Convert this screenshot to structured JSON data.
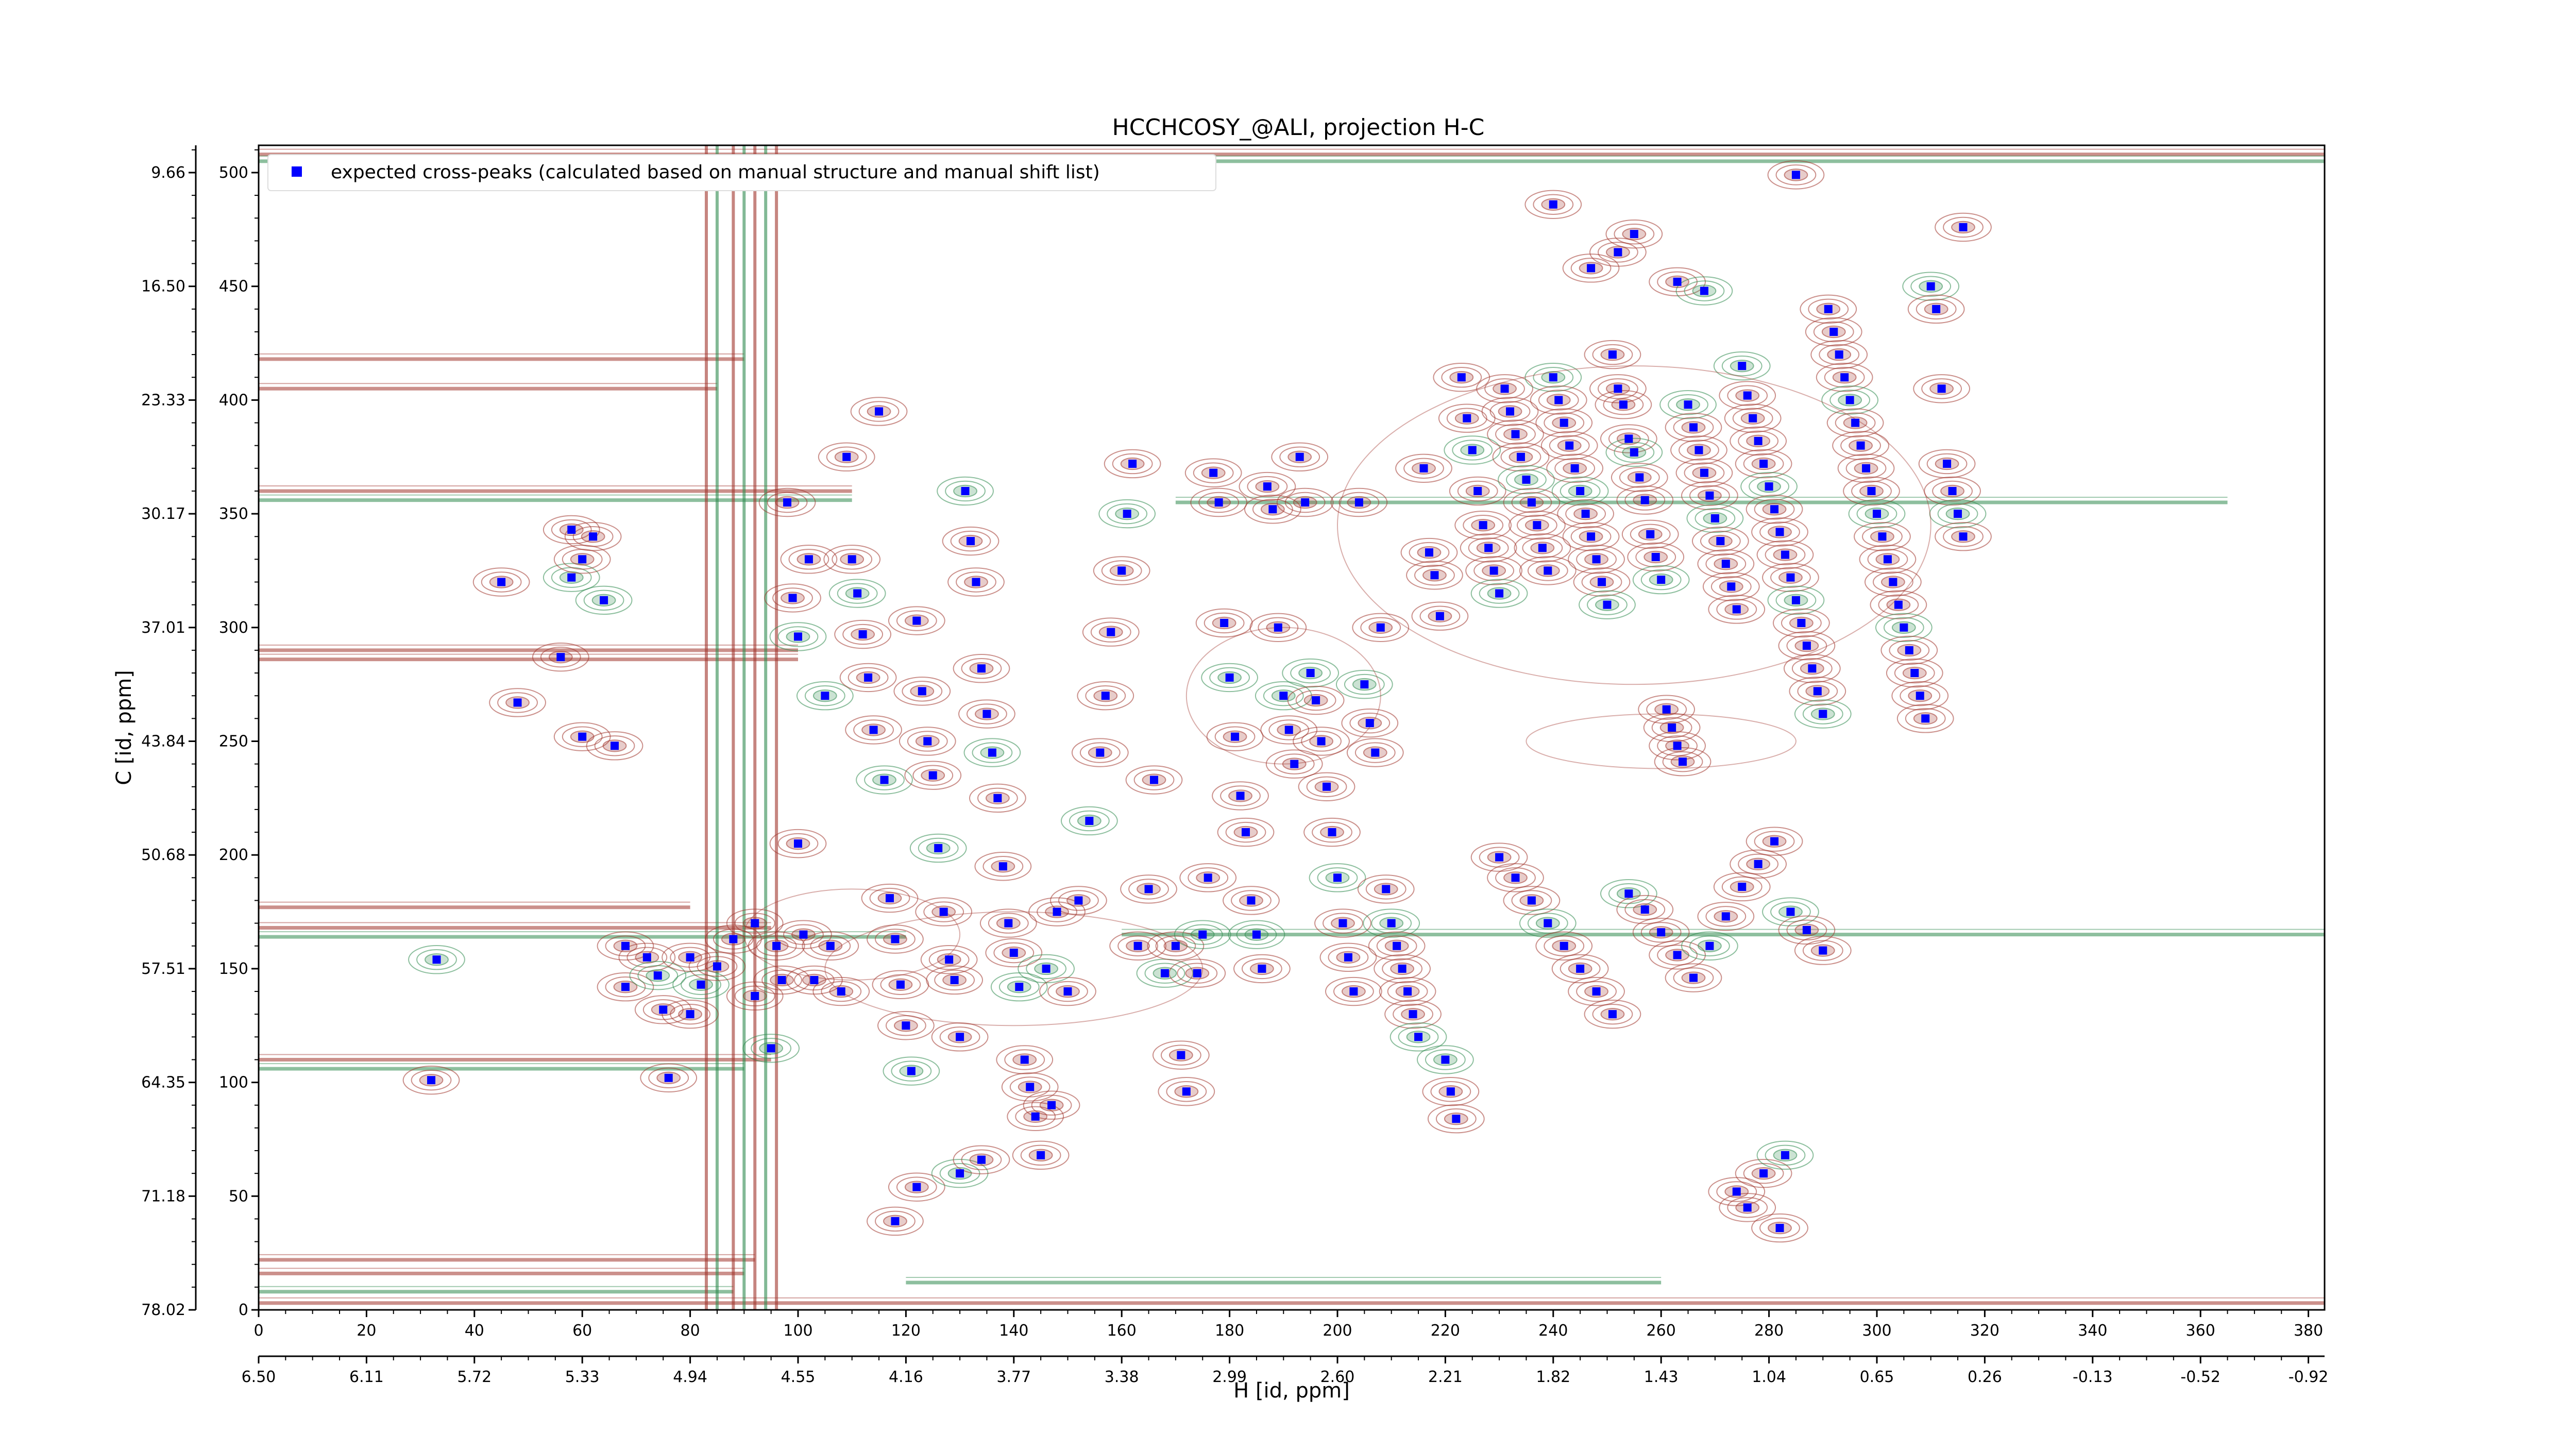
{
  "chart_data": {
    "type": "scatter",
    "title": "HCCHCOSY_@ALI, projection H-C",
    "xlabel": "H [id, ppm]",
    "ylabel": "C [id, ppm]",
    "xlim": [
      0,
      383
    ],
    "ylim": [
      0,
      512
    ],
    "grid": false,
    "legend_position": "top-left",
    "x_ticks": [
      0,
      20,
      40,
      60,
      80,
      100,
      120,
      140,
      160,
      180,
      200,
      220,
      240,
      260,
      280,
      300,
      320,
      340,
      360,
      380
    ],
    "x_ppm_ticks": [
      "6.50",
      "6.11",
      "5.72",
      "5.33",
      "4.94",
      "4.55",
      "4.16",
      "3.77",
      "3.38",
      "2.99",
      "2.60",
      "2.21",
      "1.82",
      "1.43",
      "1.04",
      "0.65",
      "0.26",
      "-0.13",
      "-0.52",
      "-0.92"
    ],
    "y_ticks": [
      0,
      50,
      100,
      150,
      200,
      250,
      300,
      350,
      400,
      450,
      500
    ],
    "y_ppm_ticks": [
      "78.02",
      "71.18",
      "64.35",
      "57.51",
      "50.68",
      "43.84",
      "37.01",
      "30.17",
      "23.33",
      "16.50",
      "9.66"
    ],
    "series": [
      {
        "name": "expected cross-peaks (calculated based on manual structure and manual shift list)",
        "color": "#0000ff",
        "marker": "square",
        "points": [
          [
            33,
            154
          ],
          [
            32,
            101
          ],
          [
            45,
            320
          ],
          [
            48,
            267
          ],
          [
            56,
            287
          ],
          [
            58,
            322
          ],
          [
            58,
            343
          ],
          [
            60,
            330
          ],
          [
            60,
            252
          ],
          [
            62,
            340
          ],
          [
            64,
            312
          ],
          [
            66,
            248
          ],
          [
            68,
            160
          ],
          [
            68,
            142
          ],
          [
            72,
            155
          ],
          [
            74,
            147
          ],
          [
            75,
            132
          ],
          [
            76,
            102
          ],
          [
            80,
            155
          ],
          [
            80,
            130
          ],
          [
            82,
            143
          ],
          [
            85,
            151
          ],
          [
            88,
            163
          ],
          [
            92,
            170
          ],
          [
            92,
            138
          ],
          [
            95,
            115
          ],
          [
            96,
            160
          ],
          [
            97,
            145
          ],
          [
            98,
            355
          ],
          [
            99,
            313
          ],
          [
            100,
            296
          ],
          [
            100,
            205
          ],
          [
            101,
            165
          ],
          [
            102,
            330
          ],
          [
            103,
            145
          ],
          [
            105,
            270
          ],
          [
            106,
            160
          ],
          [
            108,
            140
          ],
          [
            109,
            375
          ],
          [
            110,
            330
          ],
          [
            111,
            315
          ],
          [
            112,
            297
          ],
          [
            113,
            278
          ],
          [
            114,
            255
          ],
          [
            115,
            395
          ],
          [
            116,
            233
          ],
          [
            117,
            181
          ],
          [
            118,
            163
          ],
          [
            119,
            143
          ],
          [
            120,
            125
          ],
          [
            121,
            105
          ],
          [
            122,
            303
          ],
          [
            123,
            272
          ],
          [
            124,
            250
          ],
          [
            125,
            235
          ],
          [
            126,
            203
          ],
          [
            127,
            175
          ],
          [
            128,
            154
          ],
          [
            129,
            145
          ],
          [
            130,
            120
          ],
          [
            131,
            360
          ],
          [
            132,
            338
          ],
          [
            133,
            320
          ],
          [
            134,
            282
          ],
          [
            135,
            262
          ],
          [
            136,
            245
          ],
          [
            137,
            225
          ],
          [
            138,
            195
          ],
          [
            139,
            170
          ],
          [
            140,
            157
          ],
          [
            141,
            142
          ],
          [
            142,
            110
          ],
          [
            143,
            98
          ],
          [
            144,
            85
          ],
          [
            145,
            68
          ],
          [
            146,
            150
          ],
          [
            147,
            90
          ],
          [
            148,
            175
          ],
          [
            150,
            140
          ],
          [
            152,
            180
          ],
          [
            154,
            215
          ],
          [
            156,
            245
          ],
          [
            157,
            270
          ],
          [
            158,
            298
          ],
          [
            160,
            325
          ],
          [
            161,
            350
          ],
          [
            162,
            372
          ],
          [
            163,
            160
          ],
          [
            165,
            185
          ],
          [
            166,
            233
          ],
          [
            168,
            148
          ],
          [
            170,
            160
          ],
          [
            171,
            112
          ],
          [
            172,
            96
          ],
          [
            174,
            148
          ],
          [
            175,
            165
          ],
          [
            176,
            190
          ],
          [
            177,
            368
          ],
          [
            178,
            355
          ],
          [
            179,
            302
          ],
          [
            180,
            278
          ],
          [
            181,
            252
          ],
          [
            182,
            226
          ],
          [
            183,
            210
          ],
          [
            184,
            180
          ],
          [
            185,
            165
          ],
          [
            186,
            150
          ],
          [
            187,
            362
          ],
          [
            188,
            352
          ],
          [
            189,
            300
          ],
          [
            190,
            270
          ],
          [
            191,
            255
          ],
          [
            192,
            240
          ],
          [
            193,
            375
          ],
          [
            194,
            355
          ],
          [
            195,
            280
          ],
          [
            196,
            268
          ],
          [
            197,
            250
          ],
          [
            198,
            230
          ],
          [
            199,
            210
          ],
          [
            200,
            190
          ],
          [
            201,
            170
          ],
          [
            202,
            155
          ],
          [
            203,
            140
          ],
          [
            204,
            355
          ],
          [
            205,
            275
          ],
          [
            206,
            258
          ],
          [
            207,
            245
          ],
          [
            208,
            300
          ],
          [
            209,
            185
          ],
          [
            210,
            170
          ],
          [
            211,
            160
          ],
          [
            212,
            150
          ],
          [
            213,
            140
          ],
          [
            214,
            130
          ],
          [
            215,
            120
          ],
          [
            216,
            370
          ],
          [
            217,
            333
          ],
          [
            218,
            323
          ],
          [
            219,
            305
          ],
          [
            220,
            110
          ],
          [
            221,
            96
          ],
          [
            222,
            84
          ],
          [
            223,
            410
          ],
          [
            224,
            392
          ],
          [
            225,
            378
          ],
          [
            226,
            360
          ],
          [
            227,
            345
          ],
          [
            228,
            335
          ],
          [
            229,
            325
          ],
          [
            230,
            315
          ],
          [
            231,
            405
          ],
          [
            232,
            395
          ],
          [
            233,
            385
          ],
          [
            234,
            375
          ],
          [
            235,
            365
          ],
          [
            236,
            355
          ],
          [
            237,
            345
          ],
          [
            238,
            335
          ],
          [
            239,
            325
          ],
          [
            240,
            410
          ],
          [
            241,
            400
          ],
          [
            242,
            390
          ],
          [
            243,
            380
          ],
          [
            244,
            370
          ],
          [
            245,
            360
          ],
          [
            246,
            350
          ],
          [
            247,
            340
          ],
          [
            248,
            330
          ],
          [
            249,
            320
          ],
          [
            250,
            310
          ],
          [
            251,
            420
          ],
          [
            252,
            405
          ],
          [
            253,
            398
          ],
          [
            254,
            383
          ],
          [
            255,
            377
          ],
          [
            256,
            366
          ],
          [
            257,
            356
          ],
          [
            258,
            341
          ],
          [
            259,
            331
          ],
          [
            260,
            321
          ],
          [
            261,
            264
          ],
          [
            262,
            256
          ],
          [
            263,
            248
          ],
          [
            264,
            241
          ],
          [
            265,
            398
          ],
          [
            266,
            388
          ],
          [
            267,
            378
          ],
          [
            268,
            368
          ],
          [
            269,
            358
          ],
          [
            270,
            348
          ],
          [
            271,
            338
          ],
          [
            272,
            328
          ],
          [
            273,
            318
          ],
          [
            274,
            308
          ],
          [
            275,
            415
          ],
          [
            276,
            402
          ],
          [
            277,
            392
          ],
          [
            278,
            382
          ],
          [
            279,
            372
          ],
          [
            280,
            362
          ],
          [
            281,
            352
          ],
          [
            282,
            342
          ],
          [
            283,
            332
          ],
          [
            284,
            322
          ],
          [
            285,
            312
          ],
          [
            286,
            302
          ],
          [
            287,
            292
          ],
          [
            288,
            282
          ],
          [
            289,
            272
          ],
          [
            290,
            262
          ],
          [
            291,
            440
          ],
          [
            292,
            430
          ],
          [
            293,
            420
          ],
          [
            294,
            410
          ],
          [
            295,
            400
          ],
          [
            296,
            390
          ],
          [
            297,
            380
          ],
          [
            298,
            370
          ],
          [
            299,
            360
          ],
          [
            300,
            350
          ],
          [
            301,
            340
          ],
          [
            302,
            330
          ],
          [
            303,
            320
          ],
          [
            304,
            310
          ],
          [
            305,
            300
          ],
          [
            306,
            290
          ],
          [
            307,
            280
          ],
          [
            308,
            270
          ],
          [
            309,
            260
          ],
          [
            310,
            450
          ],
          [
            311,
            440
          ],
          [
            312,
            405
          ],
          [
            313,
            372
          ],
          [
            314,
            360
          ],
          [
            315,
            350
          ],
          [
            316,
            340
          ],
          [
            230,
            199
          ],
          [
            233,
            190
          ],
          [
            236,
            180
          ],
          [
            239,
            170
          ],
          [
            242,
            160
          ],
          [
            245,
            150
          ],
          [
            248,
            140
          ],
          [
            251,
            130
          ],
          [
            254,
            183
          ],
          [
            257,
            176
          ],
          [
            260,
            166
          ],
          [
            263,
            156
          ],
          [
            266,
            146
          ],
          [
            269,
            160
          ],
          [
            272,
            173
          ],
          [
            275,
            186
          ],
          [
            278,
            196
          ],
          [
            281,
            206
          ],
          [
            284,
            175
          ],
          [
            287,
            167
          ],
          [
            290,
            158
          ],
          [
            276,
            45
          ],
          [
            279,
            60
          ],
          [
            283,
            68
          ],
          [
            282,
            36
          ],
          [
            274,
            52
          ],
          [
            118,
            39
          ],
          [
            122,
            54
          ],
          [
            130,
            60
          ],
          [
            134,
            66
          ],
          [
            240,
            486
          ],
          [
            252,
            465
          ],
          [
            263,
            452
          ],
          [
            268,
            448
          ],
          [
            255,
            473
          ],
          [
            247,
            458
          ],
          [
            285,
            499
          ],
          [
            316,
            476
          ]
        ]
      }
    ]
  }
}
